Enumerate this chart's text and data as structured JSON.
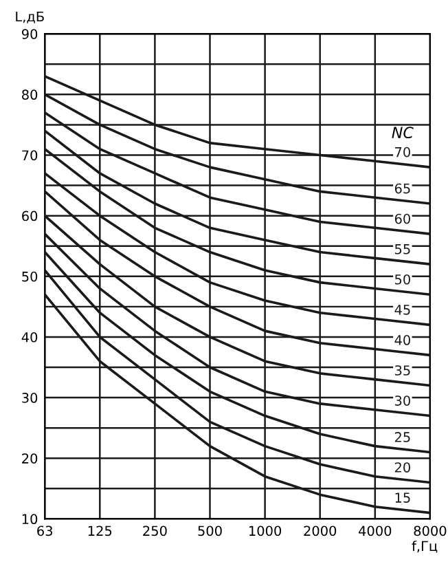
{
  "chart_data": {
    "type": "line",
    "xlabel": "f,Гц",
    "ylabel": "L,дБ",
    "categories": [
      "63",
      "125",
      "250",
      "500",
      "1000",
      "2000",
      "4000",
      "8000"
    ],
    "ylim": [
      10,
      90
    ],
    "yticks": [
      10,
      {
        "value": 15,
        "label": null
      },
      20,
      {
        "value": 25,
        "label": null
      },
      30,
      {
        "value": 35,
        "label": null
      },
      40,
      {
        "value": 45,
        "label": null
      },
      50,
      {
        "value": 55,
        "label": null
      },
      60,
      {
        "value": 65,
        "label": null
      },
      70,
      {
        "value": 75,
        "label": null
      },
      80,
      {
        "value": 85,
        "label": null
      },
      90
    ],
    "grid": true,
    "legend": false,
    "marker": "none",
    "line_style": "solid",
    "legend_title": "NC",
    "series": [
      {
        "name": "70",
        "color": "#1a1a1a",
        "values": [
          83,
          79,
          75,
          72,
          71,
          70,
          69,
          68
        ]
      },
      {
        "name": "65",
        "color": "#1a1a1a",
        "values": [
          80,
          75,
          71,
          68,
          66,
          64,
          63,
          62
        ]
      },
      {
        "name": "60",
        "color": "#1a1a1a",
        "values": [
          77,
          71,
          67,
          63,
          61,
          59,
          58,
          57
        ]
      },
      {
        "name": "55",
        "color": "#1a1a1a",
        "values": [
          74,
          67,
          62,
          58,
          56,
          54,
          53,
          52
        ]
      },
      {
        "name": "50",
        "color": "#1a1a1a",
        "values": [
          71,
          64,
          58,
          54,
          51,
          49,
          48,
          47
        ]
      },
      {
        "name": "45",
        "color": "#1a1a1a",
        "values": [
          67,
          60,
          54,
          49,
          46,
          44,
          43,
          42
        ]
      },
      {
        "name": "40",
        "color": "#1a1a1a",
        "values": [
          64,
          56,
          50,
          45,
          41,
          39,
          38,
          37
        ]
      },
      {
        "name": "35",
        "color": "#1a1a1a",
        "values": [
          60,
          52,
          45,
          40,
          36,
          34,
          33,
          32
        ]
      },
      {
        "name": "30",
        "color": "#1a1a1a",
        "values": [
          57,
          48,
          41,
          35,
          31,
          29,
          28,
          27
        ]
      },
      {
        "name": "25",
        "color": "#1a1a1a",
        "values": [
          54,
          44,
          37,
          31,
          27,
          24,
          22,
          21
        ]
      },
      {
        "name": "20",
        "color": "#1a1a1a",
        "values": [
          51,
          40,
          33,
          26,
          22,
          19,
          17,
          16
        ]
      },
      {
        "name": "15",
        "color": "#1a1a1a",
        "values": [
          47,
          36,
          29,
          22,
          17,
          14,
          12,
          11
        ]
      }
    ]
  }
}
